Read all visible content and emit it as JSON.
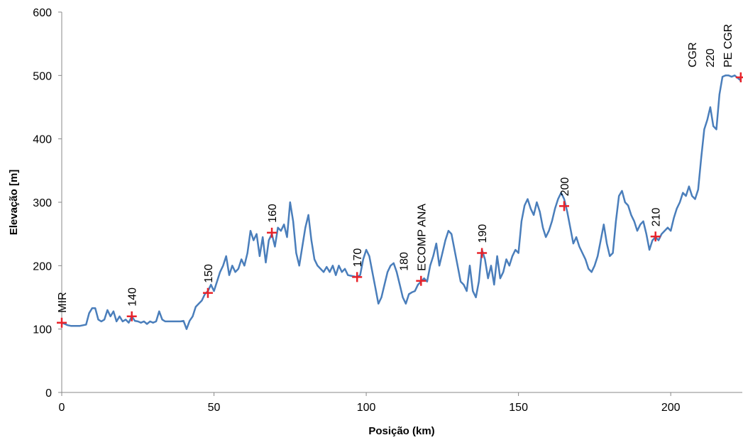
{
  "chart_data": {
    "type": "line",
    "xlabel": "Posição (km)",
    "ylabel": "Elevação [m]",
    "xlim": [
      0,
      223.5
    ],
    "ylim": [
      0,
      600
    ],
    "xticks": [
      0,
      50,
      100,
      150,
      200
    ],
    "yticks": [
      0,
      100,
      200,
      300,
      400,
      500,
      600
    ],
    "grid": false,
    "x": [
      0,
      1,
      2,
      3,
      4,
      5,
      6,
      7,
      8,
      9,
      10,
      11,
      12,
      13,
      14,
      15,
      16,
      17,
      18,
      19,
      20,
      21,
      22,
      23,
      24,
      25,
      26,
      27,
      28,
      29,
      30,
      31,
      32,
      33,
      34,
      35,
      36,
      37,
      38,
      39,
      40,
      41,
      42,
      43,
      44,
      45,
      46,
      47,
      48,
      49,
      50,
      51,
      52,
      53,
      54,
      55,
      56,
      57,
      58,
      59,
      60,
      61,
      62,
      63,
      64,
      65,
      66,
      67,
      68,
      69,
      70,
      71,
      72,
      73,
      74,
      75,
      76,
      77,
      78,
      79,
      80,
      81,
      82,
      83,
      84,
      85,
      86,
      87,
      88,
      89,
      90,
      91,
      92,
      93,
      94,
      95,
      96,
      97,
      98,
      99,
      100,
      101,
      102,
      103,
      104,
      105,
      106,
      107,
      108,
      109,
      110,
      111,
      112,
      113,
      114,
      115,
      116,
      117,
      118,
      119,
      120,
      121,
      122,
      123,
      124,
      125,
      126,
      127,
      128,
      129,
      130,
      131,
      132,
      133,
      134,
      135,
      136,
      137,
      138,
      139,
      140,
      141,
      142,
      143,
      144,
      145,
      146,
      147,
      148,
      149,
      150,
      151,
      152,
      153,
      154,
      155,
      156,
      157,
      158,
      159,
      160,
      161,
      162,
      163,
      164,
      165,
      166,
      167,
      168,
      169,
      170,
      171,
      172,
      173,
      174,
      175,
      176,
      177,
      178,
      179,
      180,
      181,
      182,
      183,
      184,
      185,
      186,
      187,
      188,
      189,
      190,
      191,
      192,
      193,
      194,
      195,
      196,
      197,
      198,
      199,
      200,
      201,
      202,
      203,
      204,
      205,
      206,
      207,
      208,
      209,
      210,
      211,
      212,
      213,
      214,
      215,
      216,
      217,
      218,
      219,
      220,
      221,
      222,
      223
    ],
    "series": [
      {
        "color": "#4a7ebb",
        "values": [
          110,
          108,
          106,
          105,
          105,
          105,
          105,
          106,
          107,
          125,
          133,
          133,
          115,
          112,
          115,
          130,
          120,
          128,
          112,
          120,
          112,
          115,
          110,
          120,
          113,
          112,
          110,
          112,
          108,
          112,
          110,
          112,
          128,
          115,
          112,
          112,
          112,
          112,
          112,
          112,
          113,
          100,
          113,
          120,
          135,
          140,
          145,
          155,
          160,
          170,
          160,
          175,
          190,
          200,
          215,
          185,
          200,
          190,
          195,
          210,
          200,
          220,
          255,
          240,
          250,
          215,
          245,
          205,
          240,
          250,
          230,
          260,
          255,
          265,
          245,
          300,
          270,
          220,
          200,
          230,
          260,
          280,
          240,
          210,
          200,
          195,
          190,
          198,
          190,
          200,
          185,
          200,
          190,
          195,
          185,
          184,
          183,
          182,
          185,
          210,
          225,
          215,
          190,
          165,
          140,
          150,
          170,
          190,
          200,
          204,
          190,
          170,
          150,
          140,
          155,
          158,
          160,
          170,
          175,
          180,
          175,
          200,
          215,
          235,
          200,
          220,
          240,
          255,
          250,
          225,
          200,
          175,
          170,
          160,
          200,
          160,
          150,
          175,
          225,
          210,
          180,
          200,
          170,
          215,
          180,
          190,
          210,
          200,
          215,
          225,
          220,
          270,
          295,
          305,
          290,
          280,
          300,
          285,
          260,
          245,
          255,
          270,
          290,
          305,
          315,
          305,
          285,
          260,
          235,
          245,
          230,
          220,
          210,
          195,
          190,
          200,
          215,
          240,
          265,
          235,
          215,
          220,
          270,
          310,
          318,
          300,
          295,
          280,
          270,
          255,
          265,
          270,
          250,
          225,
          240,
          245,
          240,
          250,
          255,
          260,
          255,
          275,
          290,
          300,
          315,
          310,
          325,
          310,
          305,
          320,
          370,
          415,
          430,
          450,
          420,
          415,
          470,
          498,
          500,
          500,
          498,
          500,
          496,
          492
        ]
      }
    ],
    "markers": {
      "color": "#e8232a",
      "points": [
        {
          "x": 0,
          "y": 110,
          "labels": [
            "MIR"
          ]
        },
        {
          "x": 23,
          "y": 120,
          "labels": [
            "140"
          ]
        },
        {
          "x": 48,
          "y": 157,
          "labels": [
            "150"
          ]
        },
        {
          "x": 69,
          "y": 252,
          "labels": [
            "160"
          ]
        },
        {
          "x": 97,
          "y": 182,
          "labels": [
            "170"
          ]
        },
        {
          "x": 118,
          "y": 176,
          "labels": [
            "180",
            "ECOMP ANA"
          ]
        },
        {
          "x": 138,
          "y": 220,
          "labels": [
            "190"
          ]
        },
        {
          "x": 165,
          "y": 294,
          "labels": [
            "200"
          ]
        },
        {
          "x": 195,
          "y": 246,
          "labels": [
            "210"
          ]
        },
        {
          "x": 223,
          "y": 497,
          "labels": [
            "CGR",
            "220",
            "PE CGR"
          ]
        }
      ]
    }
  }
}
